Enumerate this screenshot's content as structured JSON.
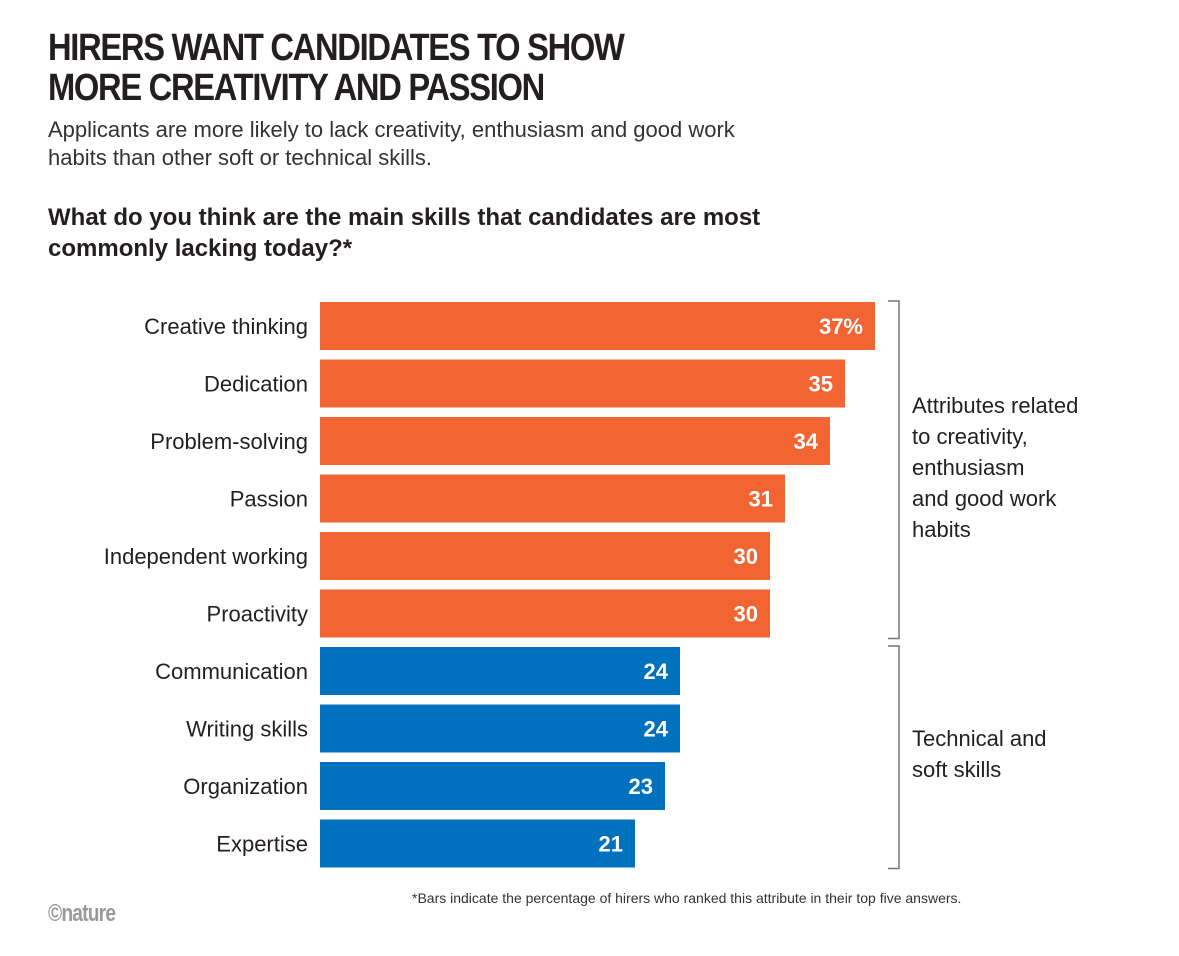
{
  "title_line1": "HIRERS WANT CANDIDATES TO SHOW",
  "title_line2": "MORE CREATIVITY AND PASSION",
  "subtitle": "Applicants are more likely to lack creativity, enthusiasm and good work habits than other soft or technical skills.",
  "chart_data": {
    "type": "bar",
    "orientation": "horizontal",
    "title": "What do you think are the main skills that candidates are most commonly lacking today?*",
    "categories": [
      "Creative thinking",
      "Dedication",
      "Problem-solving",
      "Passion",
      "Independent working",
      "Proactivity",
      "Communication",
      "Writing skills",
      "Organization",
      "Expertise"
    ],
    "values": [
      37,
      35,
      34,
      31,
      30,
      30,
      24,
      24,
      23,
      21
    ],
    "value_labels": [
      "37%",
      "35",
      "34",
      "31",
      "30",
      "30",
      "24",
      "24",
      "23",
      "21"
    ],
    "unit": "%",
    "groups": [
      {
        "name": "Attributes related to creativity, enthusiasm and good work habits",
        "lines": [
          "Attributes related",
          "to creativity,",
          "enthusiasm",
          "and good work",
          "habits"
        ],
        "color": "#F26532",
        "count": 6
      },
      {
        "name": "Technical and soft skills",
        "lines": [
          "Technical and",
          "soft skills"
        ],
        "color": "#0071BC",
        "count": 4
      }
    ],
    "xlim": [
      0,
      37
    ],
    "grid": false
  },
  "footnote": "*Bars indicate the percentage of hirers who ranked this attribute in their top five answers.",
  "logo": "©nature"
}
